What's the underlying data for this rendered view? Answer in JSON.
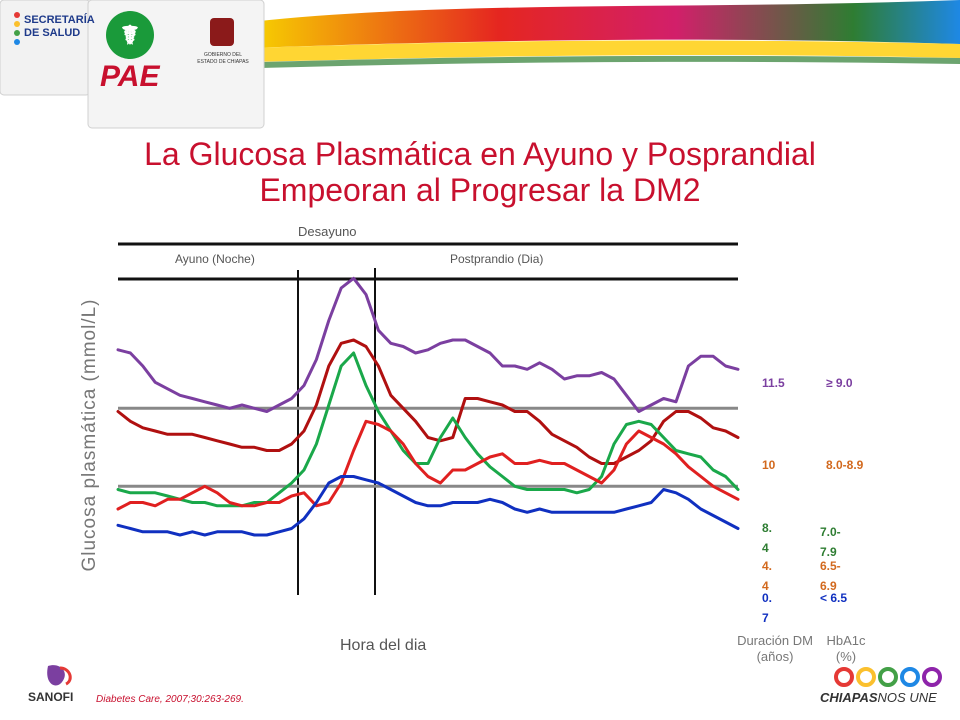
{
  "title_line1": "La Glucosa Plasmática en Ayuno y Posprandial",
  "title_line2": "Empeoran al Progresar la DM2",
  "header": {
    "left_logo_line1": "SECRETARÍA",
    "left_logo_line2": "DE SALUD",
    "program_logo": "PAE",
    "gov_logo_line1": "GOBIERNO DEL",
    "gov_logo_line2": "ESTADO DE CHIAPAS"
  },
  "footer": {
    "sanofi_logo": "SANOFI",
    "chiapas_logo_a": "CHIAPAS",
    "chiapas_logo_b": "NOS UNE",
    "citation": "Diabetes Care, 2007;30:263-269."
  },
  "colors": {
    "title": "#c8102e",
    "series_purple": "#7b3fa0",
    "series_darkred": "#b01010",
    "series_green": "#1aa84a",
    "series_red": "#e02020",
    "series_blue": "#1030c0",
    "reference_line": "#888888"
  },
  "chart_data": {
    "type": "line",
    "xlabel": "Hora del dia",
    "ylabel": "Glucosa plasmática (mmol/L)",
    "top_labels": {
      "meal": "Desayuno",
      "fasting": "Ayuno (Noche)",
      "postprandial": "Postprandio (Dia)"
    },
    "column_headers": {
      "duration": [
        "Duración DM",
        "(años)"
      ],
      "hba1c": [
        "HbA1c",
        "(%)"
      ]
    },
    "grid": false,
    "ylim": [
      0,
      100
    ],
    "x_range": [
      0,
      100
    ],
    "reference_levels": [
      35,
      59
    ],
    "x": [
      0,
      2,
      4,
      6,
      8,
      10,
      12,
      14,
      16,
      18,
      20,
      22,
      24,
      26,
      28,
      30,
      32,
      34,
      36,
      38,
      40,
      42,
      44,
      46,
      48,
      50,
      52,
      54,
      56,
      58,
      60,
      62,
      64,
      66,
      68,
      70,
      72,
      74,
      76,
      78,
      80,
      82,
      84,
      86,
      88,
      90,
      92,
      94,
      96,
      98,
      100
    ],
    "series": [
      {
        "duration": "11.5",
        "hba1c": "≥ 9.0",
        "color": "#7b3fa0",
        "values": [
          77,
          76,
          72,
          67,
          65,
          63,
          62,
          61,
          60,
          59,
          60,
          59,
          58,
          60,
          62,
          66,
          74,
          86,
          96,
          99,
          94,
          83,
          79,
          78,
          76,
          77,
          79,
          80,
          80,
          78,
          76,
          72,
          72,
          71,
          73,
          71,
          68,
          69,
          69,
          70,
          68,
          63,
          58,
          60,
          62,
          61,
          72,
          75,
          75,
          72,
          71
        ]
      },
      {
        "duration": "10",
        "hba1c": "8.0-8.9",
        "color": "#b01010",
        "values": [
          58,
          55,
          53,
          52,
          51,
          51,
          51,
          50,
          49,
          48,
          47,
          47,
          46,
          46,
          48,
          52,
          60,
          72,
          79,
          80,
          78,
          72,
          63,
          59,
          55,
          50,
          49,
          50,
          62,
          62,
          61,
          60,
          58,
          58,
          55,
          51,
          49,
          47,
          44,
          42,
          42,
          44,
          46,
          49,
          55,
          58,
          58,
          56,
          53,
          52,
          50
        ]
      },
      {
        "duration": "8.4",
        "hba1c": "7.0-7.9",
        "color": "#1aa84a",
        "values": [
          34,
          33,
          33,
          33,
          32,
          31,
          30,
          30,
          29,
          29,
          29,
          30,
          30,
          33,
          36,
          40,
          48,
          60,
          72,
          76,
          66,
          58,
          52,
          46,
          42,
          42,
          50,
          56,
          50,
          45,
          41,
          38,
          35,
          34,
          34,
          34,
          34,
          33,
          34,
          38,
          48,
          54,
          55,
          54,
          50,
          46,
          45,
          44,
          40,
          38,
          34
        ]
      },
      {
        "duration": "4.4",
        "hba1c": "6.5-6.9",
        "color": "#e02020",
        "values": [
          28,
          30,
          30,
          29,
          31,
          31,
          33,
          35,
          33,
          30,
          29,
          29,
          30,
          30,
          32,
          33,
          29,
          30,
          36,
          46,
          55,
          54,
          52,
          48,
          42,
          38,
          36,
          40,
          40,
          42,
          44,
          45,
          42,
          42,
          43,
          42,
          42,
          40,
          38,
          36,
          40,
          48,
          52,
          50,
          48,
          45,
          41,
          38,
          35,
          33,
          31
        ]
      },
      {
        "duration": "0.7",
        "hba1c": "< 6.5",
        "color": "#1030c0",
        "values": [
          23,
          22,
          21,
          21,
          21,
          20,
          21,
          20,
          21,
          21,
          21,
          20,
          20,
          21,
          22,
          25,
          30,
          36,
          38,
          38,
          37,
          36,
          34,
          32,
          30,
          29,
          29,
          30,
          30,
          30,
          31,
          30,
          28,
          27,
          28,
          27,
          27,
          27,
          27,
          27,
          27,
          28,
          29,
          30,
          34,
          33,
          31,
          28,
          26,
          24,
          22
        ]
      }
    ]
  }
}
